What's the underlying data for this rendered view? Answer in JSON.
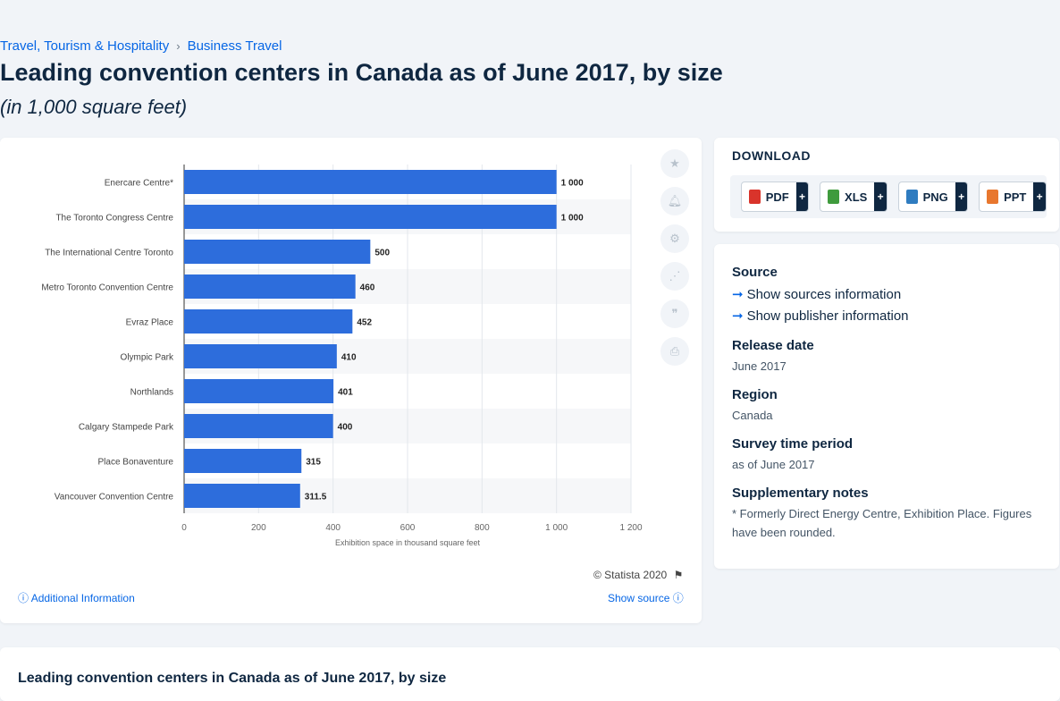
{
  "breadcrumb": {
    "items": [
      "Travel, Tourism & Hospitality",
      "Business Travel"
    ]
  },
  "page": {
    "title": "Leading convention centers in Canada as of June 2017, by size",
    "subtitle": "(in 1,000 square feet)"
  },
  "chart_data": {
    "type": "bar",
    "orientation": "horizontal",
    "categories": [
      "Enercare Centre*",
      "The Toronto Congress Centre",
      "The International Centre Toronto",
      "Metro Toronto Convention Centre",
      "Evraz Place",
      "Olympic Park",
      "Northlands",
      "Calgary Stampede Park",
      "Place Bonaventure",
      "Vancouver Convention Centre"
    ],
    "values": [
      1000,
      1000,
      500,
      460,
      452,
      410,
      401,
      400,
      315,
      311.5
    ],
    "value_labels": [
      "1 000",
      "1 000",
      "500",
      "460",
      "452",
      "410",
      "401",
      "400",
      "315",
      "311.5"
    ],
    "xlabel": "Exhibition space in thousand square feet",
    "ylabel": "",
    "xlim": [
      0,
      1200
    ],
    "ticks": [
      0,
      200,
      400,
      600,
      800,
      1000,
      1200
    ],
    "tick_labels": [
      "0",
      "200",
      "400",
      "600",
      "800",
      "1 000",
      "1 200"
    ],
    "grid": true,
    "bar_color": "#2d6ddc"
  },
  "chart_footer": {
    "copyright": "© Statista 2020",
    "additional_info": "Additional Information",
    "show_source": "Show source"
  },
  "download": {
    "title": "DOWNLOAD",
    "buttons": [
      {
        "label": "PDF",
        "icon": "pdf-file-icon",
        "color": "#d9342b"
      },
      {
        "label": "XLS",
        "icon": "xls-file-icon",
        "color": "#3f9b3d"
      },
      {
        "label": "PNG",
        "icon": "png-file-icon",
        "color": "#2f7cc0"
      },
      {
        "label": "PPT",
        "icon": "ppt-file-icon",
        "color": "#e8772e"
      }
    ],
    "plus": "+"
  },
  "info": {
    "source_label": "Source",
    "show_sources": "Show sources information",
    "show_publisher": "Show publisher information",
    "release_label": "Release date",
    "release_value": "June 2017",
    "region_label": "Region",
    "region_value": "Canada",
    "period_label": "Survey time period",
    "period_value": "as of June 2017",
    "notes_label": "Supplementary notes",
    "notes_value": "* Formerly Direct Energy Centre, Exhibition Place. Figures have been rounded."
  },
  "tools": [
    "star-icon",
    "bell-icon",
    "gear-icon",
    "share-icon",
    "quote-icon",
    "print-icon"
  ],
  "bottom": {
    "title": "Leading convention centers in Canada as of June 2017, by size"
  }
}
